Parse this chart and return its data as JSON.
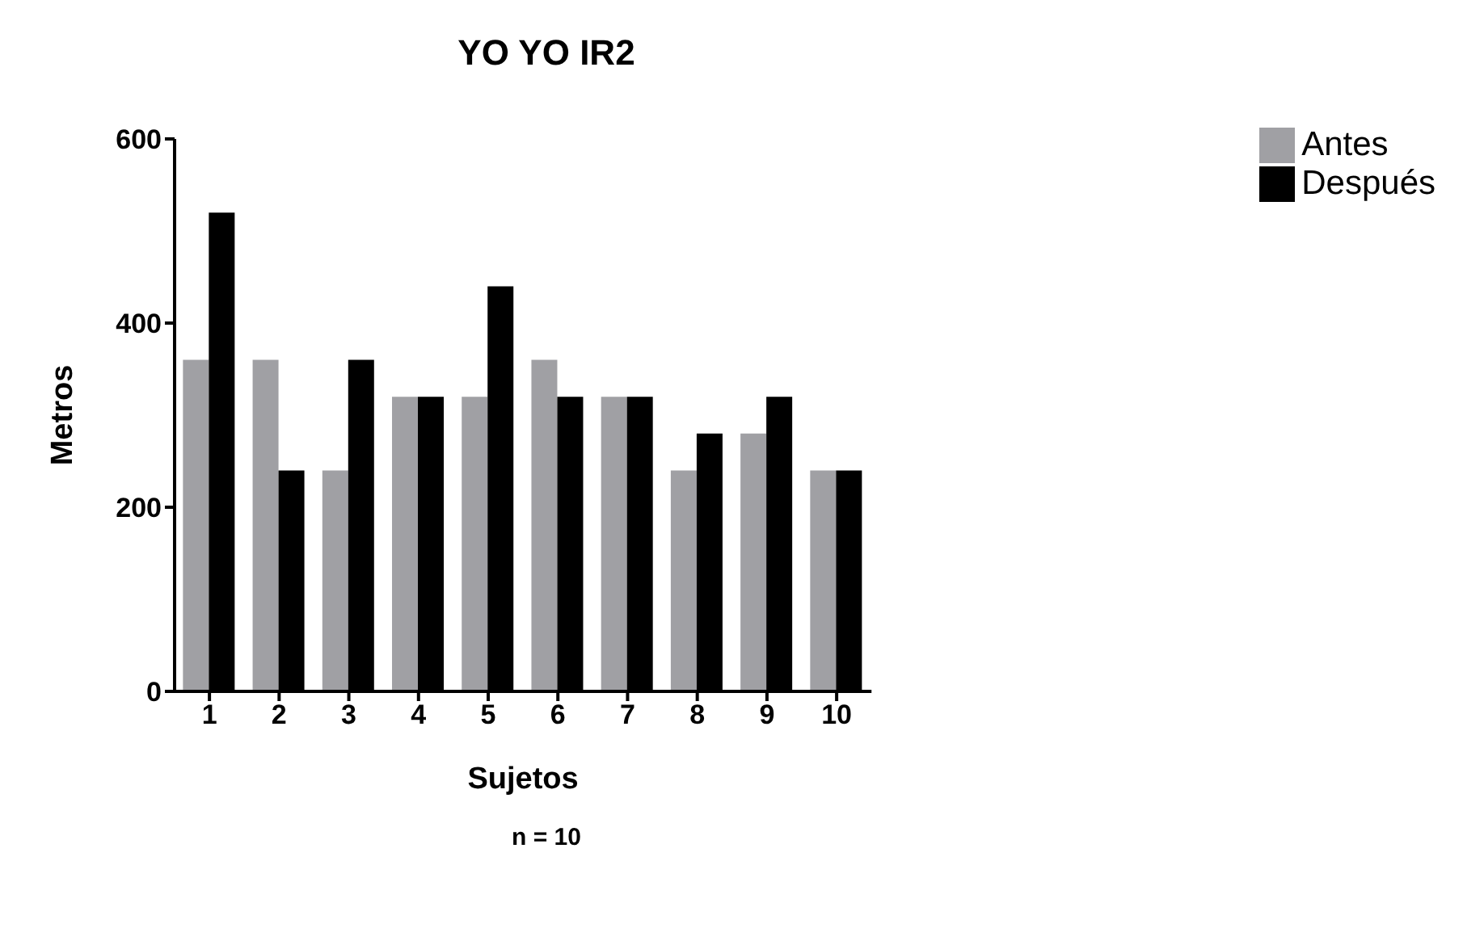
{
  "chart_data": {
    "type": "bar",
    "title": "YO YO IR2",
    "xlabel": "Sujetos",
    "ylabel": "Metros",
    "annotations": [
      "n = 10"
    ],
    "categories": [
      "1",
      "2",
      "3",
      "4",
      "5",
      "6",
      "7",
      "8",
      "9",
      "10"
    ],
    "series": [
      {
        "name": "Antes",
        "color": "#a0a0a4",
        "values": [
          360,
          360,
          240,
          320,
          320,
          360,
          320,
          240,
          280,
          240
        ]
      },
      {
        "name": "Después",
        "color": "#000000",
        "values": [
          520,
          240,
          360,
          320,
          440,
          320,
          320,
          280,
          320,
          240
        ]
      }
    ],
    "ylim": [
      0,
      600
    ],
    "yticks": [
      0,
      200,
      400,
      600
    ],
    "grid": false,
    "legend": "top right"
  }
}
